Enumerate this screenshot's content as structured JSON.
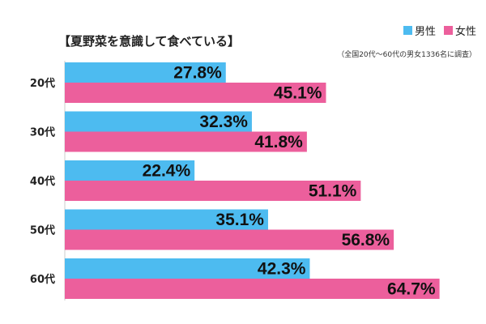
{
  "chart_data": {
    "type": "bar",
    "orientation": "horizontal",
    "title": "【夏野菜を意識して食べている】",
    "note": "（全国20代〜60代の男女1336名に調査）",
    "categories": [
      "20代",
      "30代",
      "40代",
      "50代",
      "60代"
    ],
    "series": [
      {
        "name": "男性",
        "color": "#4dbbf0",
        "values": [
          27.8,
          32.3,
          22.4,
          35.1,
          42.3
        ]
      },
      {
        "name": "女性",
        "color": "#ec5f9c",
        "values": [
          45.1,
          41.8,
          51.1,
          56.8,
          64.7
        ]
      }
    ],
    "value_suffix": "%",
    "xlim": [
      0,
      100
    ],
    "grid": false,
    "legend_position": "top-right"
  }
}
